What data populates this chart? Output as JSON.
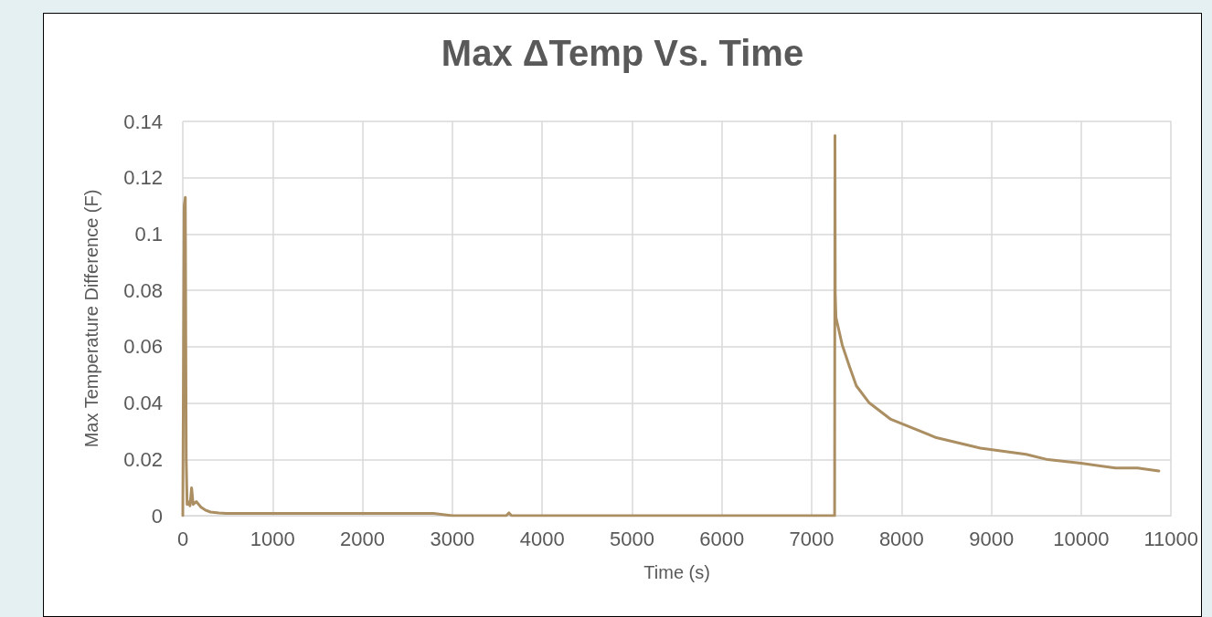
{
  "chart_data": {
    "type": "line",
    "title": "Max ΔTemp Vs. Time",
    "xlabel": "Time (s)",
    "ylabel": "Max Temperature Difference (F)",
    "x": [
      0,
      15,
      28,
      38,
      48,
      60,
      80,
      98,
      115,
      150,
      203,
      250,
      308,
      400,
      483,
      1000,
      2000,
      2790,
      3000,
      3600,
      3630,
      3660,
      4000,
      5000,
      6000,
      7000,
      7255,
      7259,
      7262,
      7270,
      7339,
      7420,
      7497,
      7636,
      7881,
      8388,
      8878,
      9385,
      9629,
      9997,
      10381,
      10626,
      10864
    ],
    "series": [
      {
        "color": "#ab8f63",
        "values": [
          0,
          0.11,
          0.113,
          0.02,
          0.004,
          0.005,
          0.0035,
          0.0099,
          0.004,
          0.005,
          0.003,
          0.002,
          0.0013,
          0.001,
          0.0008,
          0.0008,
          0.0008,
          0.0008,
          0,
          0,
          0.001,
          0,
          0,
          0,
          0,
          0,
          0,
          0.135,
          0.079,
          0.0704,
          0.0607,
          0.053,
          0.0461,
          0.0402,
          0.0342,
          0.0277,
          0.024,
          0.0218,
          0.0199,
          0.0186,
          0.0169,
          0.0169,
          0.0159
        ]
      }
    ],
    "xlim": [
      0,
      11000
    ],
    "xticks": [
      0,
      1000,
      2000,
      3000,
      4000,
      5000,
      6000,
      7000,
      8000,
      9000,
      10000,
      11000
    ],
    "ylim": [
      0,
      0.14
    ],
    "yticks": [
      0,
      0.02,
      0.04,
      0.06,
      0.08,
      0.1,
      0.12,
      0.14
    ],
    "grid": true,
    "marker": "none",
    "line_style": "solid"
  }
}
